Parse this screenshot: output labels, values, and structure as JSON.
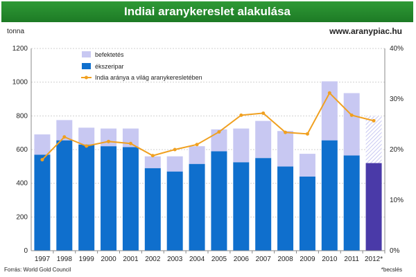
{
  "header": {
    "title": "Indiai aranykereslet alakulása",
    "website": "www.aranypiac.hu"
  },
  "footer": {
    "source": "Forrás: World Gold Council",
    "note": "*becslés"
  },
  "colors": {
    "banner": "#239029",
    "investment": "#c8c8f2",
    "jewelry": "#0f6fcd",
    "jewelry_estimate": "#4a3aa8",
    "share_line": "#f0a020"
  },
  "chart_data": {
    "type": "bar",
    "stacked": true,
    "title": "Indiai aranykereslet alakulása",
    "ylabel": "tonna",
    "ylim": [
      0,
      1200
    ],
    "yticks": [
      0,
      200,
      400,
      600,
      800,
      1000,
      1200
    ],
    "y2lim": [
      0,
      40
    ],
    "y2ticks": [
      "0%",
      "10%",
      "20%",
      "30%",
      "40%"
    ],
    "categories": [
      "1997",
      "1998",
      "1999",
      "2000",
      "2001",
      "2002",
      "2003",
      "2004",
      "2005",
      "2006",
      "2007",
      "2008",
      "2009",
      "2010",
      "2011",
      "2012*"
    ],
    "series": [
      {
        "name": "ékszeripar",
        "values": [
          570,
          655,
          630,
          620,
          615,
          490,
          470,
          515,
          590,
          525,
          550,
          500,
          440,
          655,
          565,
          520
        ]
      },
      {
        "name": "befektetés",
        "values": [
          120,
          120,
          100,
          105,
          110,
          70,
          90,
          105,
          130,
          200,
          220,
          210,
          135,
          350,
          370,
          280
        ]
      },
      {
        "name": "India aránya a világ aranykeresletében",
        "axis": "right",
        "values": [
          18,
          22.5,
          20.7,
          21.6,
          21.2,
          18.8,
          20,
          21,
          23.5,
          26.8,
          27.2,
          23.4,
          23.1,
          31.2,
          26.8,
          25.7
        ]
      }
    ],
    "legend_position": "top-left",
    "grid": true
  }
}
